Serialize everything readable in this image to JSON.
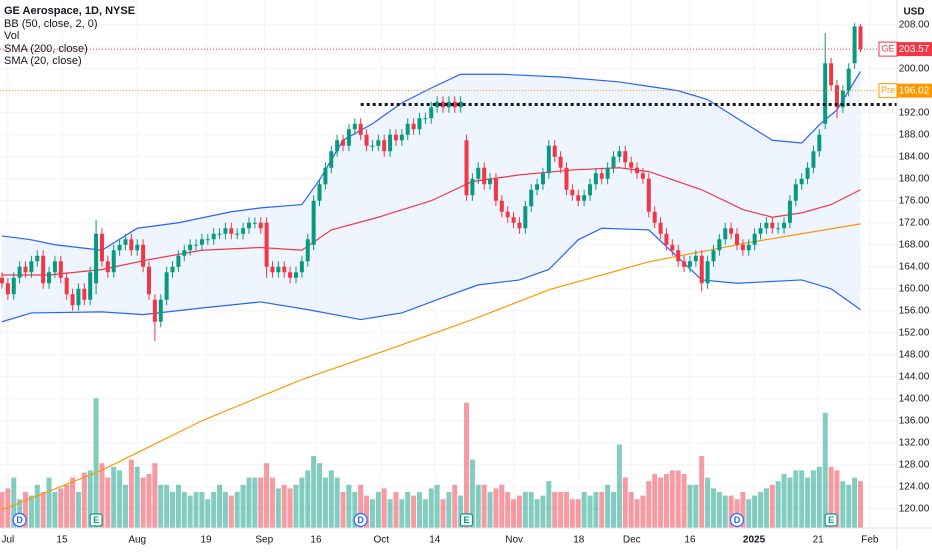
{
  "chart_data": {
    "type": "candlestick",
    "title": "GE Aerospace, 1D, NYSE",
    "currency": "USD",
    "volume_label": "Vol",
    "ylim": [
      116.5,
      212.5
    ],
    "volume_ylim": [
      0,
      73.3
    ],
    "grid": true,
    "up_color": "#089981",
    "down_color": "#f23645",
    "yticks": [
      {
        "value": 120,
        "label": "120.00"
      },
      {
        "value": 124,
        "label": "124.00"
      },
      {
        "value": 128,
        "label": "128.00"
      },
      {
        "value": 132,
        "label": "132.00"
      },
      {
        "value": 136,
        "label": "136.00"
      },
      {
        "value": 140,
        "label": "140.00"
      },
      {
        "value": 144,
        "label": "144.00"
      },
      {
        "value": 148,
        "label": "148.00"
      },
      {
        "value": 152,
        "label": "152.00"
      },
      {
        "value": 156,
        "label": "156.00"
      },
      {
        "value": 160,
        "label": "160.00"
      },
      {
        "value": 164,
        "label": "164.00"
      },
      {
        "value": 168,
        "label": "168.00"
      },
      {
        "value": 172,
        "label": "172.00"
      },
      {
        "value": 176,
        "label": "176.00"
      },
      {
        "value": 180,
        "label": "180.00"
      },
      {
        "value": 184,
        "label": "184.00"
      },
      {
        "value": 188,
        "label": "188.00"
      },
      {
        "value": 192,
        "label": "192.00"
      },
      {
        "value": 196,
        "label": "196.00"
      },
      {
        "value": 200,
        "label": "200.00"
      },
      {
        "value": 204,
        "label": "204.00"
      },
      {
        "value": 208,
        "label": "208.00"
      }
    ],
    "xticks": [
      {
        "value": 1,
        "label": "Jul"
      },
      {
        "value": 10.2,
        "label": "15"
      },
      {
        "value": 23,
        "label": "Aug"
      },
      {
        "value": 34.7,
        "label": "19"
      },
      {
        "value": 44.6,
        "label": "Sep"
      },
      {
        "value": 53.4,
        "label": "16"
      },
      {
        "value": 64.5,
        "label": "Oct"
      },
      {
        "value": 73.6,
        "label": "14"
      },
      {
        "value": 87.1,
        "label": "Nov"
      },
      {
        "value": 98.1,
        "label": "18"
      },
      {
        "value": 107.1,
        "label": "Dec"
      },
      {
        "value": 117,
        "label": "16"
      },
      {
        "value": 127.9,
        "label": "2025",
        "bold": true
      },
      {
        "value": 138.8,
        "label": "21"
      },
      {
        "value": 147.6,
        "label": "Feb"
      }
    ],
    "open": [
      162,
      161,
      159,
      162,
      164,
      163,
      165,
      166,
      161,
      163,
      165,
      162,
      159,
      157,
      160,
      158,
      161,
      170,
      165,
      163,
      167,
      168,
      169,
      167,
      168,
      164,
      158,
      154,
      158,
      163,
      164,
      166,
      167,
      168,
      168,
      169,
      169,
      170,
      170,
      171,
      170,
      170,
      171,
      172,
      172,
      172,
      164,
      163,
      164,
      163,
      162,
      163,
      165,
      168,
      176,
      179,
      182,
      185,
      187,
      186,
      189,
      190,
      188,
      186,
      186,
      187,
      185,
      188,
      187,
      188,
      190,
      189,
      191,
      191,
      193,
      194,
      193,
      194,
      193,
      187,
      177,
      180,
      182,
      179,
      180,
      176,
      174,
      173,
      172,
      171,
      175,
      178,
      179,
      181,
      186,
      184,
      182,
      178,
      177,
      176,
      177,
      179,
      181,
      180,
      182,
      184,
      185,
      183,
      182,
      181,
      180,
      174,
      172,
      170,
      168,
      167,
      165,
      164,
      165,
      166,
      161,
      165,
      167,
      169,
      171,
      170,
      168,
      167,
      168,
      170,
      171,
      172,
      171,
      171,
      172,
      176,
      179,
      180,
      182,
      185,
      190,
      201,
      197,
      193,
      196,
      201,
      207.7
    ],
    "high": [
      163,
      162,
      163,
      165,
      165,
      166,
      167,
      167,
      164,
      166,
      166,
      163,
      160,
      161,
      161,
      164,
      172.5,
      171,
      166,
      168,
      169,
      170,
      170,
      169,
      169,
      165,
      159,
      159,
      164,
      165,
      167,
      168,
      169,
      169,
      170,
      170,
      171,
      171,
      172,
      172,
      171,
      172,
      173,
      173,
      173,
      173,
      165,
      165,
      165,
      164,
      164,
      166,
      170,
      177,
      180,
      183,
      186,
      188,
      188,
      190,
      191,
      191,
      189,
      187,
      188,
      188,
      189,
      189,
      189,
      191,
      191,
      192,
      192,
      194,
      195,
      195,
      195,
      195,
      195,
      188,
      181,
      183,
      183,
      181,
      181,
      177,
      175,
      174,
      173,
      176,
      179,
      180,
      182,
      187,
      187,
      185,
      183,
      179,
      178,
      178,
      180,
      182,
      182,
      183,
      185,
      186,
      186,
      184,
      183,
      182,
      181,
      175,
      173,
      171,
      169,
      168,
      166,
      166,
      167,
      167,
      166,
      168,
      170,
      172,
      172,
      171,
      169,
      169,
      171,
      172,
      173,
      173,
      172,
      173,
      177,
      180,
      181,
      183,
      186,
      189,
      206.5,
      202,
      198,
      197,
      201,
      208.3,
      208.2
    ],
    "low": [
      160,
      158,
      158,
      161,
      162,
      162,
      164,
      160,
      160,
      162,
      161,
      158,
      156,
      156,
      157,
      157,
      159,
      164,
      162,
      162,
      166,
      167,
      166,
      166,
      163,
      158,
      150.5,
      153,
      157,
      162,
      163,
      165,
      166,
      167,
      167,
      168,
      168,
      169,
      169,
      169,
      169,
      169,
      170,
      171,
      170,
      162,
      162,
      162,
      162,
      161,
      161,
      162,
      164,
      167,
      175,
      178,
      181,
      184,
      185,
      185,
      188,
      187,
      185,
      185,
      185,
      184,
      184,
      186,
      186,
      187,
      188,
      188,
      190,
      190,
      192,
      192,
      192,
      192,
      192,
      176,
      176,
      179,
      178,
      178,
      175,
      173,
      172,
      171,
      170,
      170,
      174,
      177,
      178,
      180,
      183,
      181,
      177,
      176,
      175,
      175,
      176,
      178,
      179,
      179,
      181,
      183,
      182,
      181,
      180,
      179,
      173,
      171,
      169,
      167,
      166,
      164,
      163,
      163,
      164,
      159.5,
      160,
      164,
      166,
      168,
      169,
      167,
      166,
      166,
      167,
      169,
      170,
      170,
      170,
      170,
      171,
      175,
      178,
      179,
      181,
      184,
      189,
      196,
      191,
      192,
      195,
      200,
      203
    ],
    "close": [
      161,
      159,
      162,
      164,
      163,
      165,
      166,
      161,
      163,
      165,
      162,
      159,
      157,
      160,
      158,
      163,
      170,
      165,
      163,
      167,
      168,
      169,
      167,
      168,
      164,
      159,
      154,
      158,
      163,
      164,
      166,
      167,
      168,
      168,
      169,
      169,
      170,
      170,
      171,
      170,
      170,
      171,
      172,
      172,
      171,
      164,
      163,
      164,
      163,
      162,
      163,
      165,
      169,
      176,
      179,
      182,
      185,
      187,
      186,
      189,
      190,
      188,
      186,
      186,
      187,
      185,
      188,
      187,
      188,
      190,
      189,
      191,
      191,
      193,
      194,
      193,
      194,
      193,
      194,
      177,
      180,
      182,
      179,
      180,
      176,
      174,
      173,
      172,
      171,
      175,
      178,
      179,
      181,
      186,
      184,
      182,
      178,
      177,
      176,
      177,
      179,
      181,
      180,
      182,
      184,
      185,
      183,
      182,
      181,
      180,
      174,
      172,
      170,
      168,
      167,
      165,
      164,
      165,
      166,
      161,
      165,
      167,
      169,
      171,
      170,
      168,
      167,
      168,
      170,
      171,
      172,
      171,
      171,
      172,
      176,
      179,
      180,
      182,
      185,
      188,
      201,
      197,
      193,
      196,
      200,
      207.7,
      203.57
    ],
    "volume": [
      5,
      5.5,
      7,
      4,
      5,
      4.5,
      6,
      5,
      7,
      5,
      5.5,
      6,
      7,
      5,
      7.7,
      8,
      18,
      9,
      7,
      8.5,
      8,
      6,
      9.5,
      8.5,
      7,
      7.5,
      9,
      6,
      6,
      5,
      6,
      5,
      4.5,
      5,
      5,
      4,
      5,
      6,
      5,
      4.5,
      5,
      6,
      7,
      7,
      7,
      9,
      7,
      5.5,
      6,
      5.5,
      6,
      7,
      8,
      10,
      9,
      7,
      8,
      7,
      5,
      6,
      5,
      6,
      4.5,
      4,
      5,
      5.5,
      4,
      5,
      4,
      5,
      4.5,
      5,
      4,
      5.5,
      6,
      4,
      5,
      6,
      4.5,
      17.4,
      9.5,
      6,
      6,
      5,
      5.5,
      6,
      5,
      4,
      4.5,
      5,
      5,
      4,
      4.5,
      6.5,
      5,
      5,
      5,
      4,
      4,
      5,
      4.5,
      5,
      5,
      6,
      5,
      11.6,
      7,
      5,
      4,
      4.5,
      6.5,
      7.5,
      7,
      7.5,
      8,
      8,
      7.5,
      6,
      6,
      10,
      7,
      5.5,
      5,
      4.5,
      4.5,
      4,
      5,
      4,
      4.5,
      5,
      5.5,
      6,
      6.5,
      7.5,
      7,
      8,
      8,
      7,
      8,
      8.5,
      16,
      8.5,
      8,
      6.5,
      6,
      7,
      6.5
    ],
    "indicators": [
      {
        "name": "BB (50, close, 2, 0)",
        "color": "#2962ff",
        "fill": "#e3effd",
        "x_upper": [
          0,
          5,
          9,
          17,
          23,
          30,
          39,
          44,
          51,
          54,
          58,
          63,
          68,
          73,
          78,
          85,
          95,
          105,
          115,
          120,
          125,
          131,
          136,
          139,
          142,
          146
        ],
        "upper": [
          169.6,
          168.9,
          168,
          167,
          171,
          172,
          174,
          174.7,
          175.3,
          179.8,
          187,
          190,
          193.8,
          196.5,
          199,
          199,
          198.5,
          197.6,
          196,
          194.4,
          191,
          187,
          186.5,
          189.8,
          192.5,
          199.5
        ],
        "x_lower": [
          0,
          5,
          17,
          24,
          34,
          44,
          52,
          61,
          68,
          75,
          81,
          88,
          93,
          98,
          102,
          110,
          119,
          125,
          136,
          141,
          146
        ],
        "lower": [
          154,
          155.6,
          155.8,
          155.3,
          156.5,
          157.6,
          156.2,
          154.4,
          155.6,
          158.4,
          160.7,
          161.6,
          163.5,
          168.9,
          171,
          170.7,
          161.6,
          161,
          161.6,
          160,
          156.2
        ]
      },
      {
        "name": "SMA (200, close)",
        "color": "#ff9800",
        "x": [
          0,
          17,
          34,
          51,
          68,
          80,
          93,
          110,
          127,
          146
        ],
        "values": [
          119.8,
          127,
          136,
          143.5,
          149.8,
          154.4,
          159.8,
          164.9,
          168.4,
          171.8
        ]
      },
      {
        "name": "SMA (20, close)",
        "color": "#f23645",
        "x": [
          0,
          8,
          17,
          25,
          34,
          44,
          51,
          56,
          64,
          73,
          80,
          88,
          97,
          105,
          110,
          119,
          126,
          131,
          136,
          141,
          146
        ],
        "values": [
          162.5,
          162.5,
          163.5,
          165.3,
          167,
          167.5,
          167,
          170.7,
          173,
          176,
          179.5,
          180.7,
          181.6,
          182,
          181.3,
          178,
          174.4,
          173,
          173.8,
          175.3,
          178
        ]
      }
    ],
    "levels": [
      {
        "value": 193.5,
        "start_index": 61
      }
    ],
    "last_price": {
      "symbol": "GE",
      "value": 203.57,
      "color": "#f23645"
    },
    "pre_price": {
      "label": "Pre",
      "value": 196.02,
      "color": "#ff9800"
    },
    "events": [
      {
        "label": "D",
        "index": 3
      },
      {
        "label": "E",
        "index": 16
      },
      {
        "label": "D",
        "index": 61
      },
      {
        "label": "E",
        "index": 79
      },
      {
        "label": "D",
        "index": 125
      },
      {
        "label": "E",
        "index": 141
      }
    ]
  }
}
